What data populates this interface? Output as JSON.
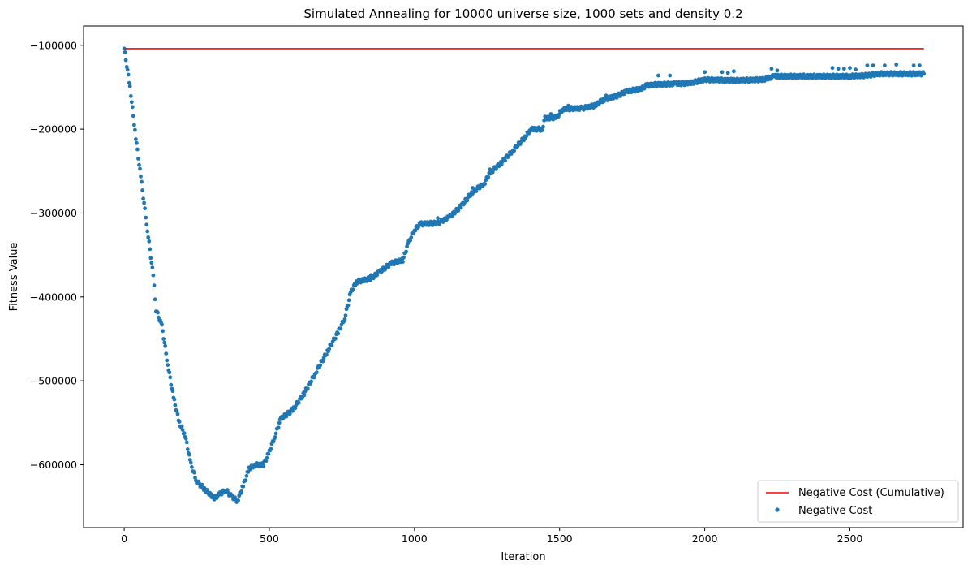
{
  "chart_data": {
    "type": "scatter",
    "title": "Simulated Annealing for 10000 universe size, 1000 sets and density 0.2",
    "xlabel": "Iteration",
    "ylabel": "Fitness Value",
    "xlim": [
      -140,
      2890
    ],
    "ylim": [
      -675000,
      -77000
    ],
    "xticks": [
      0,
      500,
      1000,
      1500,
      2000,
      2500
    ],
    "xtick_labels": [
      "0",
      "500",
      "1000",
      "1500",
      "2000",
      "2500"
    ],
    "yticks": [
      -100000,
      -200000,
      -300000,
      -400000,
      -500000,
      -600000
    ],
    "ytick_labels": [
      "−100000",
      "−200000",
      "−300000",
      "−400000",
      "−500000",
      "−600000"
    ],
    "grid": false,
    "legend_position": "bottom-right",
    "colors": {
      "line": "#ff0000",
      "scatter": "#1f77b4"
    },
    "series": [
      {
        "name": "Negative Cost (Cumulative)",
        "kind": "line",
        "x": [
          0,
          2755
        ],
        "y": [
          -104000,
          -104000
        ]
      },
      {
        "name": "Negative Cost",
        "kind": "scatter",
        "keypoints": [
          [
            0,
            -104000
          ],
          [
            20,
            -150000
          ],
          [
            40,
            -210000
          ],
          [
            60,
            -265000
          ],
          [
            80,
            -320000
          ],
          [
            100,
            -375000
          ],
          [
            110,
            -415000
          ],
          [
            130,
            -435000
          ],
          [
            150,
            -480000
          ],
          [
            170,
            -520000
          ],
          [
            190,
            -550000
          ],
          [
            210,
            -565000
          ],
          [
            230,
            -600000
          ],
          [
            250,
            -620000
          ],
          [
            280,
            -630000
          ],
          [
            310,
            -640000
          ],
          [
            330,
            -635000
          ],
          [
            350,
            -630000
          ],
          [
            370,
            -638000
          ],
          [
            390,
            -643000
          ],
          [
            410,
            -625000
          ],
          [
            430,
            -605000
          ],
          [
            450,
            -600000
          ],
          [
            480,
            -600000
          ],
          [
            500,
            -585000
          ],
          [
            520,
            -565000
          ],
          [
            540,
            -545000
          ],
          [
            580,
            -535000
          ],
          [
            620,
            -515000
          ],
          [
            660,
            -490000
          ],
          [
            700,
            -465000
          ],
          [
            740,
            -440000
          ],
          [
            760,
            -425000
          ],
          [
            780,
            -395000
          ],
          [
            800,
            -382000
          ],
          [
            850,
            -378000
          ],
          [
            880,
            -370000
          ],
          [
            920,
            -360000
          ],
          [
            960,
            -356000
          ],
          [
            980,
            -335000
          ],
          [
            1000,
            -320000
          ],
          [
            1020,
            -313000
          ],
          [
            1080,
            -312000
          ],
          [
            1120,
            -305000
          ],
          [
            1160,
            -292000
          ],
          [
            1200,
            -275000
          ],
          [
            1240,
            -265000
          ],
          [
            1260,
            -252000
          ],
          [
            1300,
            -240000
          ],
          [
            1340,
            -225000
          ],
          [
            1380,
            -210000
          ],
          [
            1400,
            -200000
          ],
          [
            1440,
            -200000
          ],
          [
            1450,
            -187000
          ],
          [
            1490,
            -186000
          ],
          [
            1510,
            -176000
          ],
          [
            1580,
            -175000
          ],
          [
            1620,
            -172000
          ],
          [
            1650,
            -165000
          ],
          [
            1700,
            -160000
          ],
          [
            1730,
            -155000
          ],
          [
            1780,
            -152000
          ],
          [
            1800,
            -148000
          ],
          [
            1820,
            -147000
          ],
          [
            1900,
            -146000
          ],
          [
            1950,
            -145000
          ],
          [
            2000,
            -141000
          ],
          [
            2100,
            -142000
          ],
          [
            2200,
            -141000
          ],
          [
            2240,
            -137000
          ],
          [
            2350,
            -137000
          ],
          [
            2500,
            -137000
          ],
          [
            2560,
            -136000
          ],
          [
            2600,
            -134000
          ],
          [
            2755,
            -134000
          ]
        ],
        "outliers": [
          [
            1840,
            -136000
          ],
          [
            1880,
            -136000
          ],
          [
            2000,
            -132000
          ],
          [
            2060,
            -132000
          ],
          [
            2080,
            -133000
          ],
          [
            2100,
            -131000
          ],
          [
            2230,
            -128000
          ],
          [
            2250,
            -130000
          ],
          [
            2440,
            -127000
          ],
          [
            2460,
            -128000
          ],
          [
            2480,
            -128000
          ],
          [
            2500,
            -127000
          ],
          [
            2520,
            -129000
          ],
          [
            2560,
            -124000
          ],
          [
            2580,
            -124000
          ],
          [
            2620,
            -124000
          ],
          [
            2660,
            -123000
          ],
          [
            2720,
            -124000
          ],
          [
            2740,
            -124000
          ],
          [
            1660,
            -160000
          ],
          [
            1690,
            -162000
          ],
          [
            1470,
            -182000
          ],
          [
            1530,
            -172000
          ],
          [
            960,
            -354000
          ],
          [
            850,
            -374000
          ],
          [
            1080,
            -306000
          ],
          [
            1200,
            -270000
          ],
          [
            1260,
            -248000
          ]
        ]
      }
    ]
  }
}
